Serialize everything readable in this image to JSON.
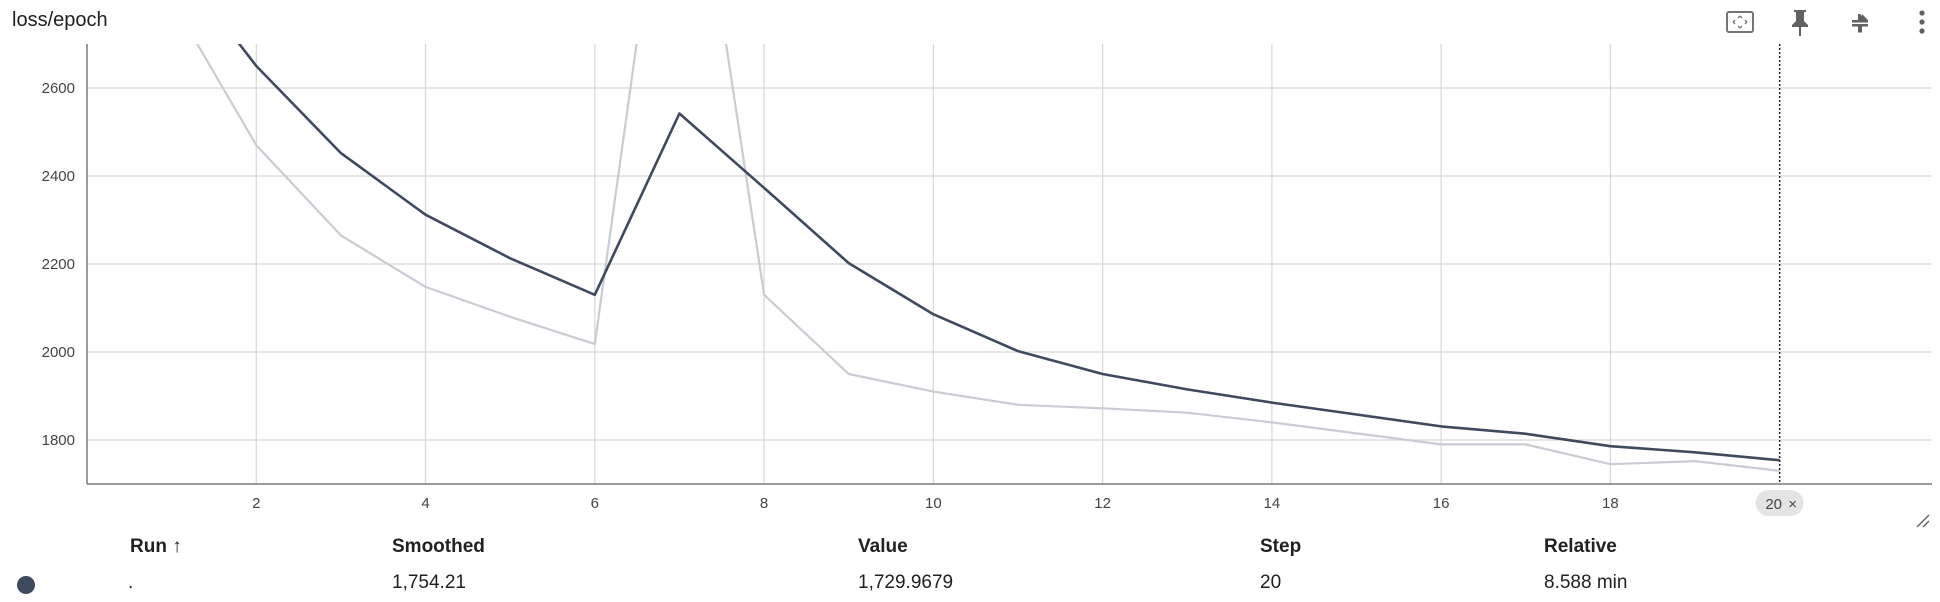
{
  "card": {
    "title": "loss/epoch",
    "icons": [
      "fit-domain-icon",
      "pin-icon",
      "collapse-icon",
      "more-vert-icon"
    ]
  },
  "colors": {
    "smoothed_line": "#3f4a5e",
    "raw_line": "#c8ccd4",
    "grid": "#d7d7d7",
    "axis": "#7a7a7a",
    "run_dot": "#3f4a5e"
  },
  "chart_data": {
    "type": "line",
    "x_ticks": [
      2,
      4,
      6,
      8,
      10,
      12,
      14,
      16,
      18
    ],
    "y_ticks": [
      1800,
      2000,
      2200,
      2400,
      2600
    ],
    "xlim": [
      0,
      21.8
    ],
    "ylim": [
      1700,
      2700
    ],
    "grid": true,
    "series": [
      {
        "role": "raw",
        "x": [
          1,
          2,
          3,
          4,
          5,
          6,
          7,
          8,
          9,
          10,
          11,
          12,
          13,
          14,
          15,
          16,
          17,
          18,
          19,
          20
        ],
        "values": [
          2800,
          2470,
          2265,
          2148,
          2080,
          2018,
          3400,
          2130,
          1950,
          1910,
          1880,
          1872,
          1862,
          1840,
          1815,
          1790,
          1790,
          1745,
          1752,
          1730
        ]
      },
      {
        "role": "smoothed",
        "x": [
          1,
          2,
          3,
          4,
          5,
          6,
          7,
          8,
          9,
          10,
          11,
          12,
          13,
          14,
          15,
          16,
          17,
          18,
          19,
          20
        ],
        "values": [
          2900,
          2650,
          2452,
          2312,
          2213,
          2130,
          2542,
          2373,
          2202,
          2086,
          2002,
          1950,
          1915,
          1885,
          1858,
          1831,
          1814,
          1786,
          1772,
          1754
        ]
      }
    ],
    "hover": {
      "step": 20,
      "step_label": "20",
      "close_glyph": "×"
    }
  },
  "table": {
    "headers": {
      "run": "Run ↑",
      "smoothed": "Smoothed",
      "value": "Value",
      "step": "Step",
      "relative": "Relative"
    },
    "row": {
      "run": ".",
      "smoothed": "1,754.21",
      "value": "1,729.9679",
      "step": "20",
      "relative": "8.588 min"
    }
  }
}
